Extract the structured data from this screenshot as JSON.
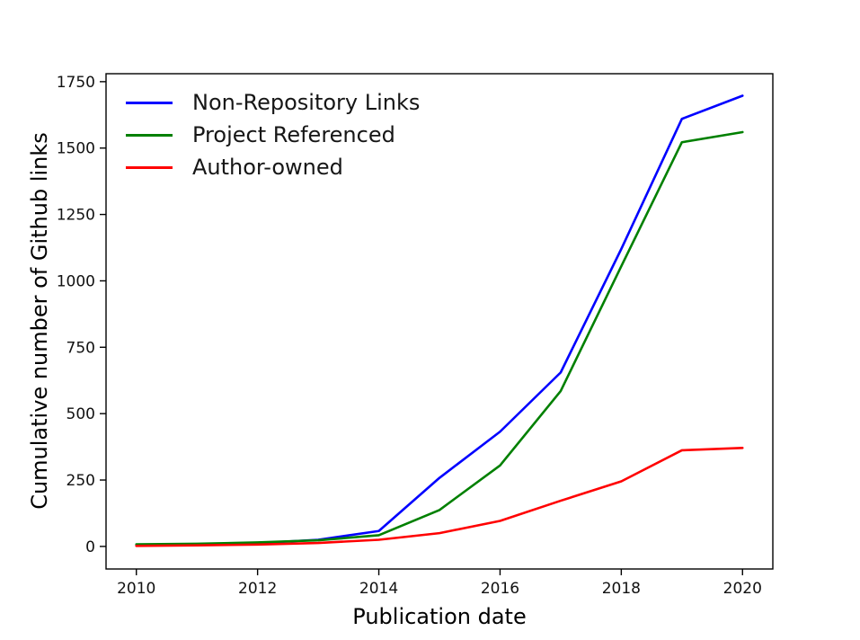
{
  "figure": {
    "background": "#ffffff",
    "text_color": "#000000",
    "axis_color": "#000000"
  },
  "chart_data": {
    "type": "line",
    "title": "",
    "xlabel": "Publication date",
    "ylabel": "Cumulative number of Github links",
    "x": [
      2010,
      2011,
      2012,
      2013,
      2014,
      2015,
      2016,
      2017,
      2018,
      2019,
      2020
    ],
    "series": [
      {
        "name": "Non-Repository Links",
        "color": "#0000ff",
        "values": [
          5,
          8,
          12,
          25,
          58,
          258,
          432,
          655,
          1120,
          1610,
          1697
        ]
      },
      {
        "name": "Project Referenced",
        "color": "#008000",
        "values": [
          8,
          10,
          15,
          23,
          42,
          137,
          305,
          585,
          1055,
          1522,
          1560
        ]
      },
      {
        "name": "Author-owned",
        "color": "#ff0000",
        "values": [
          2,
          4,
          7,
          13,
          25,
          50,
          96,
          172,
          245,
          362,
          371
        ]
      }
    ],
    "xticks": [
      2010,
      2012,
      2014,
      2016,
      2018,
      2020
    ],
    "yticks": [
      0,
      250,
      500,
      750,
      1000,
      1250,
      1500,
      1750
    ],
    "xlim": [
      2009.5,
      2020.5
    ],
    "ylim": [
      -85,
      1780
    ],
    "grid": false,
    "legend_position": "upper-left"
  }
}
